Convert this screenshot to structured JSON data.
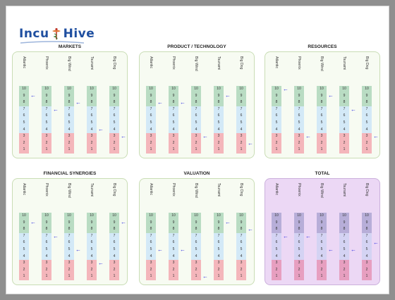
{
  "app": {
    "logo_text_left": "Incu",
    "logo_text_right": "Hive"
  },
  "candidates": [
    "Atlantic",
    "Phoenix",
    "Big Wind",
    "Tsunami",
    "Big Dog"
  ],
  "scale_values": [
    "10",
    "9",
    "8",
    "7",
    "6",
    "5",
    "4",
    "3",
    "2",
    "1"
  ],
  "colors": {
    "high_band": "#b9dcc3",
    "mid_band": "#d3e9f7",
    "low_band": "#f4b6bb",
    "arrow": "#2a2adf",
    "total_bg": "#ecd8f5"
  },
  "panels": [
    {
      "title": "MARKETS",
      "total": false,
      "scores": [
        9,
        7,
        8,
        4,
        3
      ]
    },
    {
      "title": "PRODUCT / TECHNOLOGY",
      "total": false,
      "scores": [
        8,
        8,
        3,
        9,
        2
      ]
    },
    {
      "title": "RESOURCES",
      "total": false,
      "scores": [
        10,
        3,
        9,
        7,
        3
      ]
    },
    {
      "title": "FINANCIAL SYNERGIES",
      "total": false,
      "scores": [
        9,
        7,
        5,
        3,
        9
      ]
    },
    {
      "title": "VALUATION",
      "total": false,
      "scores": [
        5,
        5,
        1,
        9,
        8
      ]
    },
    {
      "title": "TOTAL",
      "total": true,
      "scores": [
        7,
        7,
        5,
        5,
        6
      ]
    }
  ]
}
